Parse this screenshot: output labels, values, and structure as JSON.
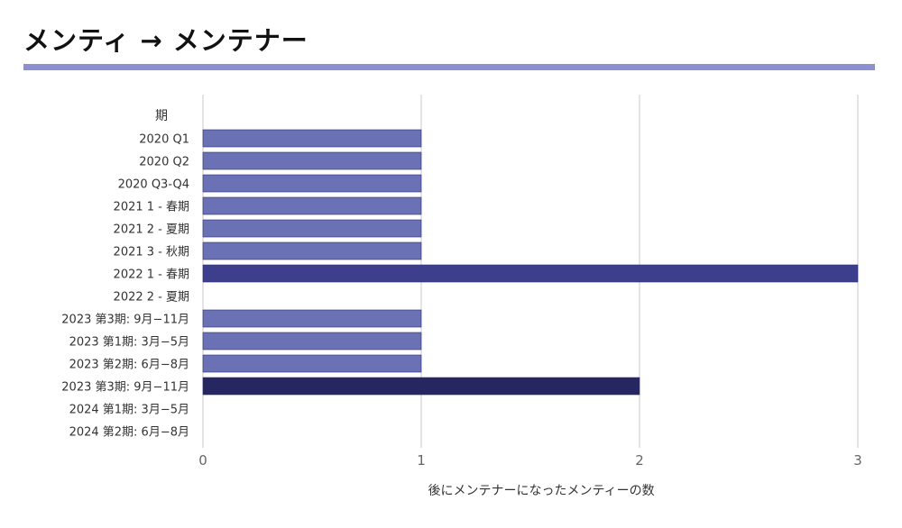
{
  "page": {
    "title": "メンティ → メンテナー",
    "accent_color": "#8c8fd0"
  },
  "chart_data": {
    "type": "bar",
    "orientation": "horizontal",
    "title": "メンティ → メンテナー",
    "ylabel": "期",
    "xlabel": "後にメンテナーになったメンティーの数",
    "categories": [
      "2020 Q1",
      "2020 Q2",
      "2020 Q3-Q4",
      "2021 1 - 春期",
      "2021 2 - 夏期",
      "2021 3 - 秋期",
      "2022 1 - 春期",
      "2022 2 - 夏期",
      "2023 第3期: 9月−11月",
      "2023 第1期: 3月−5月",
      "2023 第2期: 6月−8月",
      "2023 第3期: 9月−11月",
      "2024 第1期: 3月−5月",
      "2024 第2期: 6月−8月"
    ],
    "values": [
      1,
      1,
      1,
      1,
      1,
      1,
      3,
      0,
      1,
      1,
      1,
      2,
      0,
      0
    ],
    "xlim": [
      0,
      3
    ],
    "xticks": [
      "0",
      "1",
      "2",
      "3"
    ],
    "grid": true,
    "colors": {
      "1": "#6b71b5",
      "2": "#262660",
      "3": "#3d3f8d",
      "gridline": "#c8c8c8",
      "bar_border": "#2d2f6e"
    }
  }
}
